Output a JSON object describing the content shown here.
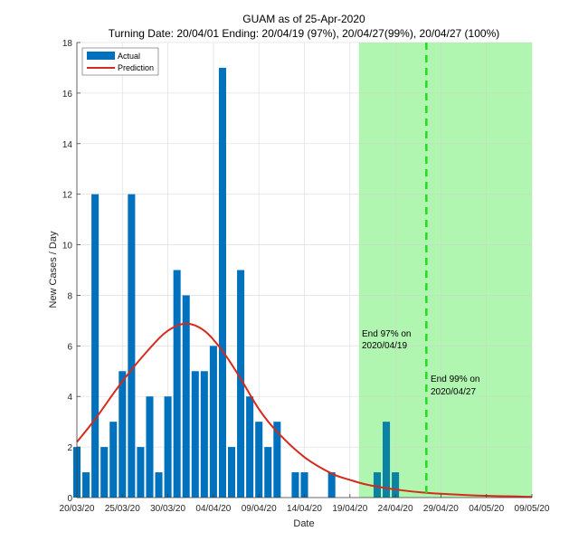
{
  "chart_data": {
    "type": "bar",
    "title": "GUAM as of 25-Apr-2020",
    "subtitle": "Turning Date: 20/04/01  Ending: 20/04/19 (97%), 20/04/27(99%), 20/04/27 (100%)",
    "xlabel": "Date",
    "ylabel": "New Cases / Day",
    "ylim": [
      0,
      18
    ],
    "yticks": [
      0,
      2,
      4,
      6,
      8,
      10,
      12,
      14,
      16,
      18
    ],
    "x_start_date": "20/03/20",
    "xlim_days": [
      0,
      50
    ],
    "xticks": [
      {
        "day": 0,
        "label": "20/03/20"
      },
      {
        "day": 5,
        "label": "25/03/20"
      },
      {
        "day": 10,
        "label": "30/03/20"
      },
      {
        "day": 15,
        "label": "04/04/20"
      },
      {
        "day": 20,
        "label": "09/04/20"
      },
      {
        "day": 25,
        "label": "14/04/20"
      },
      {
        "day": 30,
        "label": "19/04/20"
      },
      {
        "day": 35,
        "label": "24/04/20"
      },
      {
        "day": 40,
        "label": "29/04/20"
      },
      {
        "day": 45,
        "label": "04/05/20"
      },
      {
        "day": 50,
        "label": "09/05/20"
      }
    ],
    "grid": true,
    "legend": {
      "placement": "top-left",
      "entries": [
        "Actual",
        "Prediction"
      ]
    },
    "series": [
      {
        "name": "Actual",
        "kind": "bar",
        "color": "#0072bd",
        "dates": [
          "20/03",
          "21/03",
          "22/03",
          "23/03",
          "24/03",
          "25/03",
          "26/03",
          "27/03",
          "28/03",
          "29/03",
          "30/03",
          "31/03",
          "01/04",
          "02/04",
          "03/04",
          "04/04",
          "05/04",
          "06/04",
          "07/04",
          "08/04",
          "09/04",
          "10/04",
          "11/04",
          "12/04",
          "13/04",
          "14/04",
          "15/04",
          "16/04",
          "17/04",
          "18/04",
          "19/04",
          "20/04",
          "21/04",
          "22/04",
          "23/04",
          "24/04"
        ],
        "values": [
          2,
          1,
          12,
          2,
          3,
          5,
          12,
          2,
          4,
          1,
          4,
          9,
          8,
          5,
          5,
          6,
          17,
          2,
          9,
          4,
          3,
          2,
          3,
          0,
          1,
          1,
          0,
          0,
          1,
          0,
          0,
          0,
          0,
          1,
          3,
          1
        ]
      },
      {
        "name": "Prediction",
        "kind": "line",
        "color": "#d62a1c",
        "days": [
          0,
          2,
          5,
          8,
          10,
          12,
          14,
          16,
          18,
          20,
          22,
          25,
          28,
          30,
          32,
          35,
          38,
          40,
          45,
          50
        ],
        "values": [
          2.2,
          3.1,
          4.6,
          5.9,
          6.6,
          6.88,
          6.6,
          5.8,
          4.7,
          3.5,
          2.6,
          1.6,
          0.95,
          0.7,
          0.5,
          0.32,
          0.2,
          0.15,
          0.07,
          0.03
        ]
      }
    ],
    "shaded_region": {
      "from_day": 31,
      "to_day": 50,
      "color": "#ccffcc",
      "meaning": "prediction period"
    },
    "vlines": [
      {
        "day": 38.4,
        "style": "dashed",
        "color": "#22dd22",
        "label": "End 99%"
      }
    ],
    "annotations": [
      {
        "line1": "End 97% on",
        "line2": "2020/04/19"
      },
      {
        "line1": "End 99% on",
        "line2": "2020/04/27"
      }
    ]
  }
}
